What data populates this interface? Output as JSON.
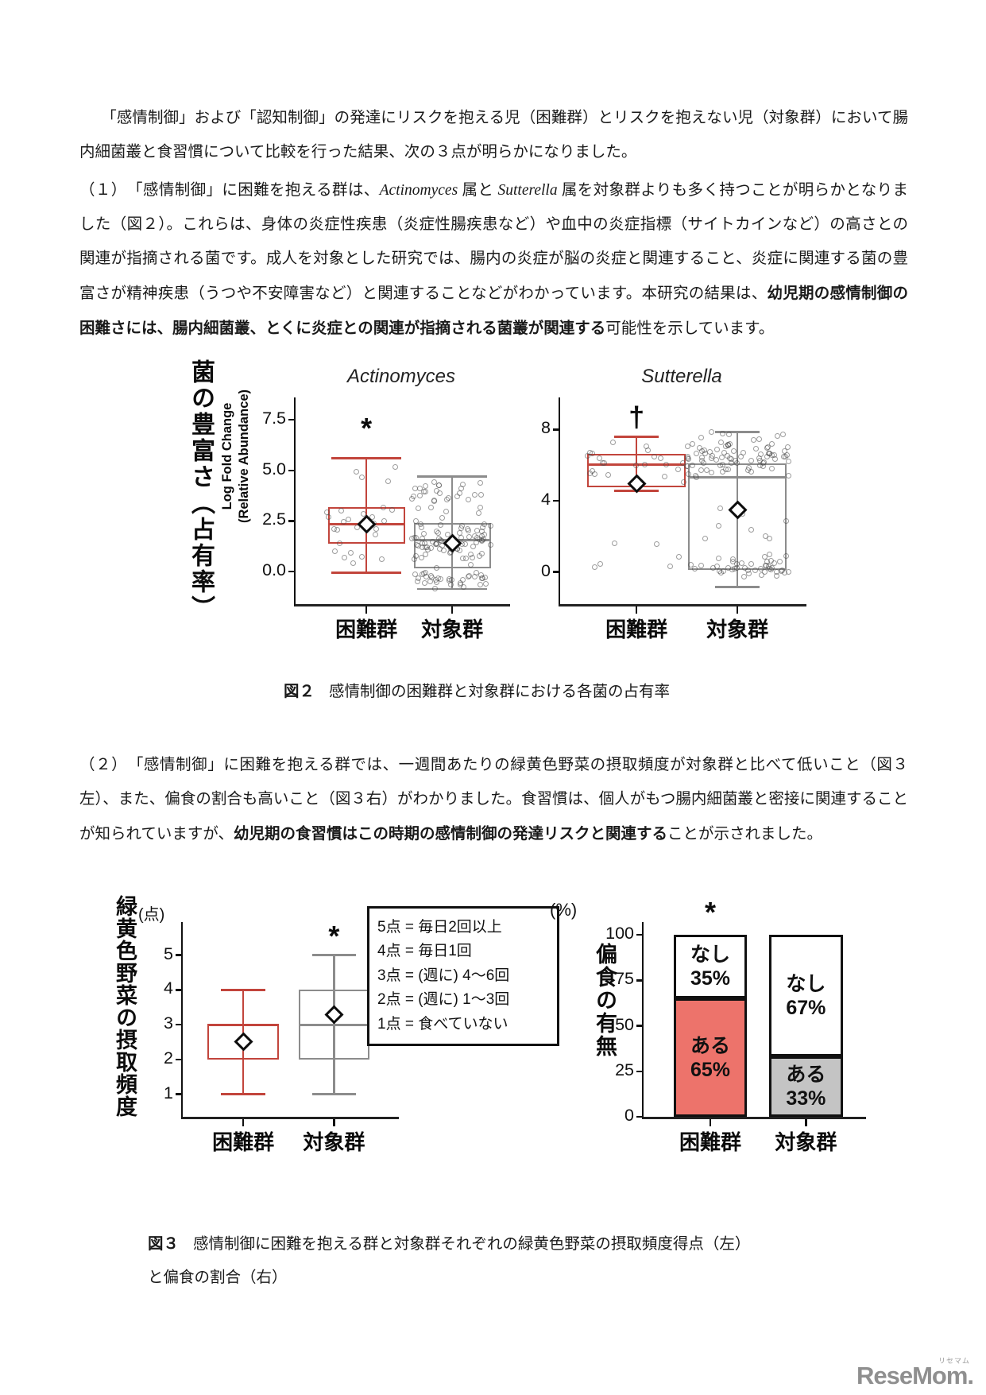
{
  "colors": {
    "box_red": "#c2453c",
    "box_grey": "#8c8c8c",
    "bar_red": "#ed736b",
    "bar_grey": "#c4c4c4",
    "axis_black": "#111111",
    "logo_grey": "#8f8f8f"
  },
  "page": {
    "intro_text": "「感情制御」および「認知制御」の発達にリスクを抱える児（困難群）とリスクを抱えない児（対象群）において腸内細菌叢と食習慣について比較を行った結果、次の３点が明らかになりました。",
    "para1": {
      "s1": "（１）　「感情制御」に困難を抱える群は、",
      "s2": "Actinomyces",
      "s3": " 属と ",
      "s4": "Sutterella",
      "s5": " 属を対象群よりも多く持つことが明らかとなりました（図２）。これらは、身体の炎症性疾患（炎症性腸疾患など）や血中の炎症指標（サイトカインなど）の高さとの関連が指摘される菌です。成人を対象とした研究では、腸内の炎症が脳の炎症と関連すること、炎症に関連する菌の豊富さが精神疾患（うつや不安障害など）と関連することなどがわかっています。本研究の結果は、",
      "s6": "幼児期の感情制御の困難さには、腸内細菌叢、とくに炎症との関連が指摘される菌叢が関連する",
      "s7": "可能性を示しています。"
    },
    "fig2_caption": {
      "label": "図２",
      "text": "感情制御の困難群と対象群における各菌の占有率"
    },
    "para2": {
      "s1": "（２）　「感情制御」に困難を抱える群では、一週間あたりの緑黄色野菜の摂取頻度が対象群と比べて低いこと（図３左）、また、偏食の割合も高いこと（図３右）がわかりました。食習慣は、個人がもつ腸内細菌叢と密接に関連することが知られていますが、",
      "s2": "幼児期の食習慣はこの時期の感情制御の発達リスクと関連する",
      "s3": "ことが示されました。"
    },
    "fig3_caption": {
      "label": "図３",
      "line1": "感情制御に困難を抱える群と対象群それぞれの緑黄色野菜の摂取頻度得点（左）",
      "line2": "と偏食の割合（右）"
    },
    "logo": {
      "text": "ReseMom.",
      "ruby": "リセマム"
    }
  },
  "chart_data": [
    {
      "type": "boxplot",
      "figure": "fig2-left",
      "title": "Actinomyces",
      "ylabel_line1": "Log Fold Change",
      "ylabel_line2": "(Relative Abundance)",
      "ylabel_jp": "菌の豊富さ（占有率）",
      "ylim": [
        -1.6,
        8.6
      ],
      "yticks": [
        {
          "v": 0,
          "label": "0.0"
        },
        {
          "v": 2.5,
          "label": "2.5"
        },
        {
          "v": 5,
          "label": "5.0"
        },
        {
          "v": 7.5,
          "label": "7.5"
        }
      ],
      "categories": [
        "困難群",
        "対象群"
      ],
      "centers": [
        0.33,
        0.73
      ],
      "box_w": 0.36,
      "cap_ratio": 0.9,
      "boxes": [
        {
          "color": "red",
          "q1": 1.4,
          "median": 2.35,
          "q3": 3.2,
          "whisker_lo": -0.05,
          "whisker_hi": 5.6,
          "mean": 2.35,
          "annotation": {
            "text": "*",
            "y": 7.0
          },
          "scatter": [
            {
              "n": 20,
              "min": 1.2,
              "max": 3.7,
              "seed": 11
            },
            {
              "n": 6,
              "min": 0.3,
              "max": 1.1,
              "seed": 12
            },
            {
              "n": 4,
              "min": 3.9,
              "max": 5.6,
              "seed": 13
            }
          ]
        },
        {
          "color": "grey",
          "q1": 0.15,
          "median": 1.55,
          "q3": 2.4,
          "whisker_lo": -0.85,
          "whisker_hi": 4.7,
          "mean": 1.4,
          "scatter": [
            {
              "n": 75,
              "min": 0.2,
              "max": 2.7,
              "seed": 21
            },
            {
              "n": 35,
              "min": -0.85,
              "max": 0.2,
              "seed": 22
            },
            {
              "n": 30,
              "min": 2.7,
              "max": 4.7,
              "seed": 23
            }
          ]
        }
      ]
    },
    {
      "type": "boxplot",
      "figure": "fig2-right",
      "title": "Sutterella",
      "ylim": [
        -1.8,
        9.8
      ],
      "yticks": [
        {
          "v": 0,
          "label": "0"
        },
        {
          "v": 4,
          "label": "4"
        },
        {
          "v": 8,
          "label": "8"
        }
      ],
      "categories": [
        "困難群",
        "対象群"
      ],
      "centers": [
        0.31,
        0.72
      ],
      "box_w": 0.4,
      "cap_ratio": 0.45,
      "boxes": [
        {
          "color": "red",
          "q1": 4.75,
          "median": 6.05,
          "q3": 6.65,
          "whisker_lo": 4.55,
          "whisker_hi": 7.6,
          "mean": 4.95,
          "annotation": {
            "text": "†",
            "y": 8.6
          },
          "scatter": [
            {
              "n": 24,
              "min": 4.5,
              "max": 7.6,
              "seed": 31
            },
            {
              "n": 6,
              "min": -0.5,
              "max": 1.7,
              "seed": 32
            }
          ]
        },
        {
          "color": "grey",
          "q1": 0.1,
          "median": 5.3,
          "q3": 6.1,
          "whisker_lo": -0.85,
          "whisker_hi": 7.85,
          "mean": 3.5,
          "scatter": [
            {
              "n": 85,
              "min": 4.9,
              "max": 7.9,
              "seed": 41
            },
            {
              "n": 45,
              "min": -0.7,
              "max": 1.1,
              "seed": 42
            },
            {
              "n": 8,
              "min": 1.5,
              "max": 4.2,
              "seed": 43
            }
          ]
        }
      ]
    },
    {
      "type": "boxplot",
      "figure": "fig3-left",
      "unit": "(点)",
      "ylabel_jp": "緑黄色野菜の摂取頻度",
      "ylim": [
        0.35,
        5.95
      ],
      "yticks": [
        {
          "v": 1,
          "label": "1"
        },
        {
          "v": 2,
          "label": "2"
        },
        {
          "v": 3,
          "label": "3"
        },
        {
          "v": 4,
          "label": "4"
        },
        {
          "v": 5,
          "label": "5"
        }
      ],
      "categories": [
        "困難群",
        "対象群"
      ],
      "centers": [
        0.28,
        0.7
      ],
      "box_w": 0.33,
      "cap_ratio": 0.62,
      "legend": [
        "5点 = 毎日2回以上",
        "4点 = 毎日1回",
        "3点 = (週に) 4～6回",
        "2点 = (週に) 1～3回",
        "1点 = 食べていない"
      ],
      "boxes": [
        {
          "color": "red",
          "q1": 2,
          "median": 3,
          "q3": 3,
          "whisker_lo": 1,
          "whisker_hi": 4,
          "mean": 2.52
        },
        {
          "color": "grey",
          "q1": 2,
          "median": 3,
          "q3": 4,
          "whisker_lo": 1,
          "whisker_hi": 5,
          "mean": 3.28,
          "annotation": {
            "text": "*",
            "y": 5.5
          }
        }
      ]
    },
    {
      "type": "stacked_bar",
      "figure": "fig3-right",
      "unit": "(%)",
      "ylabel_jp": "偏食の有無",
      "ylim": [
        0,
        107
      ],
      "yticks": [
        {
          "v": 0,
          "label": "0"
        },
        {
          "v": 25,
          "label": "25"
        },
        {
          "v": 50,
          "label": "50"
        },
        {
          "v": 75,
          "label": "75"
        },
        {
          "v": 100,
          "label": "100"
        }
      ],
      "categories": [
        "困難群",
        "対象群"
      ],
      "centers": [
        0.3,
        0.73
      ],
      "bar_w": 0.33,
      "bars": [
        {
          "annotation": "*",
          "segments": [
            {
              "label": "ある",
              "pct": 65,
              "fill": "#ed736b"
            },
            {
              "label": "なし",
              "pct": 35,
              "fill": "#ffffff"
            }
          ]
        },
        {
          "segments": [
            {
              "label": "ある",
              "pct": 33,
              "fill": "#c4c4c4"
            },
            {
              "label": "なし",
              "pct": 67,
              "fill": "#ffffff"
            }
          ]
        }
      ]
    }
  ]
}
